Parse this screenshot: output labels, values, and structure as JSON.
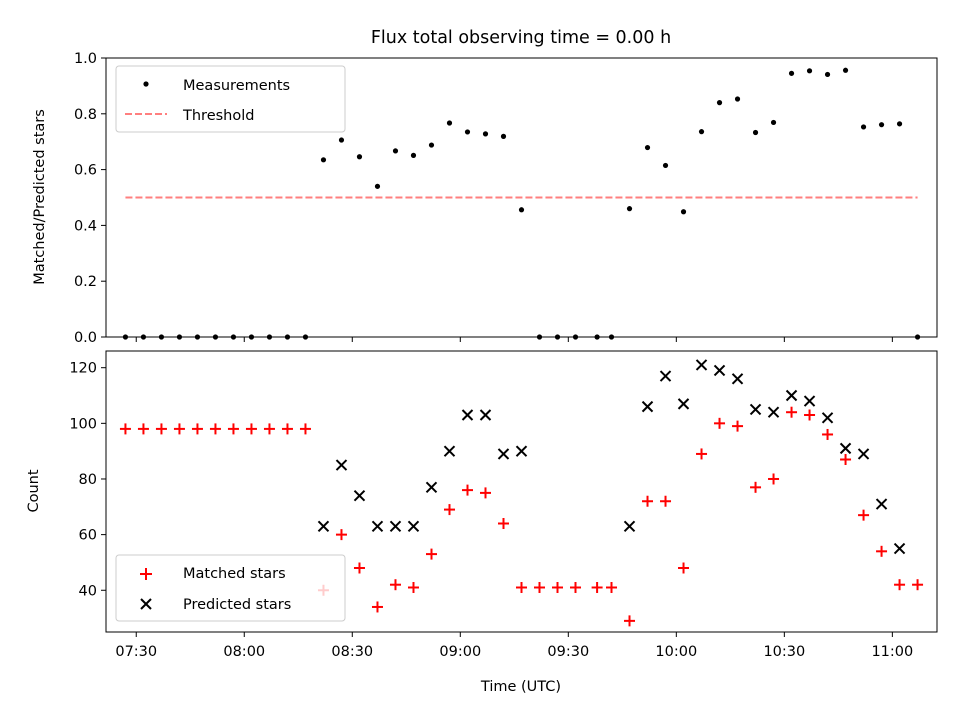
{
  "chart_data": {
    "type": "scatter",
    "title": "Flux total observing time = 0.00 h",
    "xlabel": "Time (UTC)",
    "x_ticks": [
      "07:30",
      "08:00",
      "08:30",
      "09:00",
      "09:30",
      "10:00",
      "10:30",
      "11:00"
    ],
    "x": [
      "07:27",
      "07:32",
      "07:37",
      "07:42",
      "07:47",
      "07:52",
      "07:57",
      "08:02",
      "08:07",
      "08:12",
      "08:17",
      "08:22",
      "08:27",
      "08:32",
      "08:37",
      "08:42",
      "08:47",
      "08:52",
      "08:57",
      "09:02",
      "09:07",
      "09:12",
      "09:17",
      "09:22",
      "09:27",
      "09:32",
      "09:38",
      "09:42",
      "09:47",
      "09:52",
      "09:57",
      "10:02",
      "10:07",
      "10:12",
      "10:17",
      "10:22",
      "10:27",
      "10:32",
      "10:37",
      "10:42",
      "10:47",
      "10:52",
      "10:57",
      "11:02",
      "11:07"
    ],
    "panels": [
      {
        "ylabel": "Matched/Predicted stars",
        "ylim": [
          0.0,
          1.0
        ],
        "y_ticks": [
          "0.0",
          "0.2",
          "0.4",
          "0.6",
          "0.8",
          "1.0"
        ],
        "legend_position": "top-left",
        "series": [
          {
            "name": "Measurements",
            "marker": "dot",
            "color": "#000000",
            "values": [
              0,
              0,
              0,
              0,
              0,
              0,
              0,
              0,
              0,
              0,
              0,
              0.635,
              0.706,
              0.646,
              0.54,
              0.667,
              0.651,
              0.688,
              0.767,
              0.735,
              0.728,
              0.719,
              0.456,
              0,
              0,
              0,
              0,
              0,
              0.46,
              0.679,
              0.615,
              0.449,
              0.736,
              0.84,
              0.853,
              0.733,
              0.769,
              0.945,
              0.954,
              0.941,
              0.956,
              0.753,
              0.761,
              0.764,
              0
            ]
          },
          {
            "name": "Threshold",
            "marker": "dashed-line",
            "color": "#ff7f7f",
            "x_range": [
              "07:27",
              "11:07"
            ],
            "value": 0.5
          }
        ]
      },
      {
        "ylabel": "Count",
        "ylim": [
          25,
          126
        ],
        "y_ticks": [
          "40",
          "60",
          "80",
          "100",
          "120"
        ],
        "legend_position": "bottom-left",
        "series": [
          {
            "name": "Matched stars",
            "marker": "plus",
            "color": "#ff0000",
            "values": [
              98,
              98,
              98,
              98,
              98,
              98,
              98,
              98,
              98,
              98,
              98,
              40,
              60,
              48,
              34,
              42,
              41,
              53,
              69,
              76,
              75,
              64,
              41,
              41,
              41,
              41,
              41,
              41,
              29,
              72,
              72,
              48,
              89,
              100,
              99,
              77,
              80,
              104,
              103,
              96,
              87,
              67,
              54,
              42,
              42
            ]
          },
          {
            "name": "Predicted stars",
            "marker": "x",
            "color": "#000000",
            "values": [
              null,
              null,
              null,
              null,
              null,
              null,
              null,
              null,
              null,
              null,
              null,
              63,
              85,
              74,
              63,
              63,
              63,
              77,
              90,
              103,
              103,
              89,
              90,
              null,
              null,
              null,
              null,
              null,
              63,
              106,
              117,
              107,
              121,
              119,
              116,
              105,
              104,
              110,
              108,
              102,
              91,
              89,
              71,
              55,
              null
            ]
          }
        ]
      }
    ]
  }
}
